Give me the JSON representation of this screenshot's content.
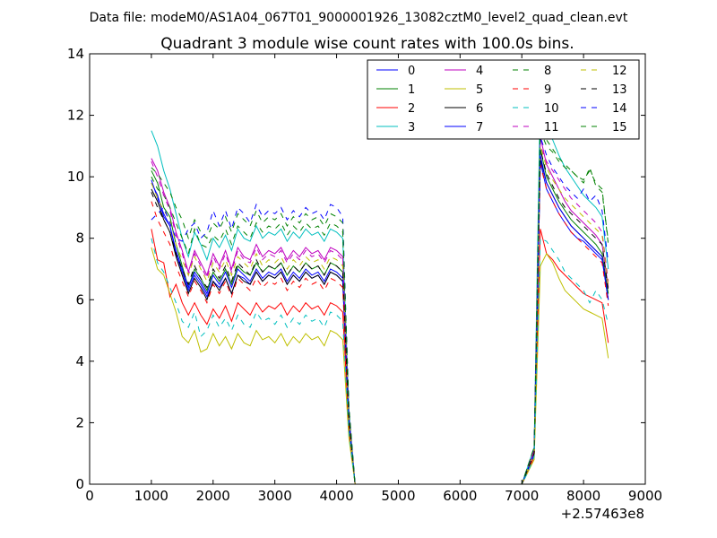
{
  "chart_data": {
    "type": "line",
    "suptitle": "Data file: modeM0/AS1A04_067T01_9000001926_13082cztM0_level2_quad_clean.evt",
    "title": "Quadrant 3 module wise count rates with 100.0s bins.",
    "xlabel": "",
    "ylabel": "",
    "x_offset_label": "+2.57463e8",
    "xlim": [
      0,
      9000
    ],
    "ylim": [
      0,
      14
    ],
    "xticks": [
      0,
      1000,
      2000,
      3000,
      4000,
      5000,
      6000,
      7000,
      8000,
      9000
    ],
    "yticks": [
      0,
      2,
      4,
      6,
      8,
      10,
      12,
      14
    ],
    "grid": false,
    "legend_position": "top-right",
    "x": [
      1000,
      1100,
      1200,
      1300,
      1400,
      1500,
      1600,
      1700,
      1800,
      1900,
      2000,
      2100,
      2200,
      2300,
      2400,
      2500,
      2600,
      2700,
      2800,
      2900,
      3000,
      3100,
      3200,
      3300,
      3400,
      3500,
      3600,
      3700,
      3800,
      3900,
      4000,
      4100,
      4200,
      4300,
      4400,
      5000,
      6000,
      7000,
      7100,
      7200,
      7300,
      7400,
      7500,
      7600,
      7700,
      7800,
      7900,
      8000,
      8100,
      8200,
      8300,
      8400
    ],
    "series": [
      {
        "name": "0",
        "style": "solid",
        "color": "#0000ff",
        "values": [
          9.8,
          9.4,
          8.7,
          8.4,
          7.5,
          6.9,
          6.3,
          6.8,
          6.5,
          6.1,
          6.6,
          6.4,
          6.7,
          6.2,
          6.8,
          6.7,
          6.5,
          6.9,
          6.6,
          6.8,
          6.7,
          6.9,
          6.5,
          6.8,
          6.6,
          6.9,
          6.7,
          6.8,
          6.5,
          6.9,
          6.8,
          6.6,
          2.0,
          0,
          0,
          0,
          0,
          0,
          0.5,
          1.0,
          10.5,
          9.6,
          9.2,
          8.8,
          8.5,
          8.2,
          8.0,
          7.9,
          7.7,
          7.5,
          7.3,
          6.0
        ]
      },
      {
        "name": "1",
        "style": "solid",
        "color": "#008000",
        "values": [
          10.2,
          9.8,
          9.0,
          8.7,
          7.8,
          7.1,
          6.4,
          7.0,
          6.7,
          6.3,
          6.9,
          6.6,
          7.0,
          6.5,
          7.1,
          6.9,
          6.8,
          7.2,
          6.9,
          7.1,
          7.0,
          7.2,
          6.8,
          7.1,
          6.9,
          7.2,
          7.0,
          7.1,
          6.8,
          7.2,
          7.1,
          6.9,
          2.1,
          0,
          0,
          0,
          0,
          0,
          0.5,
          1.0,
          10.9,
          10.0,
          9.6,
          9.2,
          8.9,
          8.6,
          8.4,
          8.2,
          8.0,
          7.8,
          7.5,
          6.2
        ]
      },
      {
        "name": "2",
        "style": "solid",
        "color": "#ff0000",
        "values": [
          8.3,
          7.3,
          7.2,
          6.1,
          6.5,
          5.9,
          5.5,
          5.9,
          5.5,
          5.2,
          5.7,
          5.4,
          5.8,
          5.3,
          5.9,
          5.7,
          5.5,
          5.9,
          5.6,
          5.8,
          5.7,
          5.9,
          5.5,
          5.8,
          5.6,
          5.9,
          5.7,
          5.8,
          5.5,
          5.9,
          5.8,
          5.6,
          1.8,
          0,
          0,
          0,
          0,
          0,
          0.4,
          0.9,
          8.3,
          7.5,
          7.3,
          7.0,
          6.8,
          6.6,
          6.4,
          6.2,
          6.1,
          6.0,
          5.9,
          4.6
        ]
      },
      {
        "name": "3",
        "style": "solid",
        "color": "#00bfbf",
        "values": [
          11.5,
          11.0,
          10.2,
          9.6,
          8.8,
          8.0,
          7.4,
          8.2,
          7.8,
          7.3,
          8.0,
          7.7,
          8.1,
          7.6,
          8.3,
          8.0,
          7.9,
          8.4,
          8.0,
          8.2,
          8.1,
          8.3,
          7.9,
          8.2,
          8.0,
          8.3,
          8.1,
          8.2,
          7.9,
          8.3,
          8.2,
          8.0,
          2.4,
          0,
          0,
          0,
          0,
          0,
          0.6,
          1.2,
          12.9,
          11.7,
          11.2,
          10.7,
          10.3,
          10.0,
          9.7,
          9.4,
          9.2,
          9.0,
          8.7,
          7.0
        ]
      },
      {
        "name": "4",
        "style": "solid",
        "color": "#bf00bf",
        "values": [
          10.6,
          10.2,
          9.5,
          9.0,
          8.2,
          7.6,
          6.9,
          7.6,
          7.2,
          6.8,
          7.5,
          7.1,
          7.6,
          7.0,
          7.7,
          7.4,
          7.3,
          7.8,
          7.4,
          7.6,
          7.5,
          7.7,
          7.3,
          7.6,
          7.4,
          7.7,
          7.5,
          7.6,
          7.3,
          7.7,
          7.6,
          7.4,
          2.2,
          0,
          0,
          0,
          0,
          0,
          0.5,
          1.1,
          11.3,
          10.4,
          10.0,
          9.6,
          9.2,
          8.9,
          8.7,
          8.5,
          8.3,
          8.1,
          7.8,
          6.4
        ]
      },
      {
        "name": "5",
        "style": "solid",
        "color": "#bfbf00",
        "values": [
          7.7,
          7.0,
          6.8,
          6.2,
          5.6,
          4.8,
          4.6,
          5.0,
          4.3,
          4.4,
          4.9,
          4.5,
          4.8,
          4.4,
          4.9,
          4.6,
          4.5,
          5.0,
          4.7,
          4.8,
          4.6,
          4.9,
          4.5,
          4.8,
          4.6,
          4.9,
          4.7,
          4.8,
          4.5,
          5.0,
          4.9,
          4.7,
          1.5,
          0,
          0,
          0,
          0,
          0,
          0.4,
          0.8,
          7.1,
          7.5,
          7.2,
          6.7,
          6.3,
          6.1,
          5.9,
          5.7,
          5.6,
          5.5,
          5.4,
          4.1
        ]
      },
      {
        "name": "6",
        "style": "solid",
        "color": "#000000",
        "values": [
          9.6,
          9.2,
          8.6,
          8.2,
          7.4,
          6.8,
          6.2,
          6.7,
          6.4,
          6.0,
          6.6,
          6.3,
          6.7,
          6.2,
          6.8,
          6.6,
          6.5,
          6.9,
          6.6,
          6.8,
          6.7,
          6.9,
          6.5,
          6.8,
          6.6,
          6.9,
          6.7,
          6.8,
          6.5,
          6.9,
          6.8,
          6.6,
          2.0,
          0,
          0,
          0,
          0,
          0,
          0.5,
          1.0,
          10.6,
          9.8,
          9.4,
          9.0,
          8.7,
          8.4,
          8.2,
          8.0,
          7.8,
          7.6,
          7.4,
          6.0
        ]
      },
      {
        "name": "7",
        "style": "solid",
        "color": "#0000ff",
        "values": [
          9.9,
          9.3,
          8.8,
          8.4,
          7.6,
          7.0,
          6.4,
          6.9,
          6.6,
          6.2,
          6.8,
          6.5,
          6.9,
          6.4,
          7.0,
          6.8,
          6.6,
          7.0,
          6.7,
          6.9,
          6.8,
          7.0,
          6.6,
          6.9,
          6.7,
          7.0,
          6.8,
          6.9,
          6.6,
          7.0,
          6.9,
          6.7,
          2.0,
          0,
          0,
          0,
          0,
          0,
          0.5,
          1.0,
          10.7,
          9.8,
          9.4,
          9.0,
          8.7,
          8.4,
          8.2,
          8.0,
          7.8,
          7.6,
          7.4,
          6.0
        ]
      },
      {
        "name": "8",
        "style": "dashed",
        "color": "#008000",
        "values": [
          10.0,
          9.6,
          9.4,
          9.0,
          8.5,
          8.0,
          7.5,
          8.3,
          7.8,
          7.7,
          8.1,
          7.9,
          8.3,
          7.8,
          8.4,
          8.2,
          8.0,
          8.5,
          8.2,
          8.4,
          8.3,
          8.5,
          8.1,
          8.4,
          8.2,
          8.5,
          8.3,
          8.4,
          8.1,
          8.5,
          8.4,
          8.2,
          2.4,
          0,
          0,
          0,
          0,
          0,
          0.6,
          1.2,
          11.5,
          11.0,
          10.8,
          10.5,
          10.3,
          10.2,
          10.0,
          9.9,
          10.2,
          9.8,
          9.6,
          7.8
        ]
      },
      {
        "name": "9",
        "style": "dashed",
        "color": "#ff0000",
        "values": [
          9.2,
          8.6,
          8.2,
          7.8,
          7.1,
          6.6,
          6.1,
          6.6,
          6.3,
          5.9,
          6.5,
          6.2,
          6.6,
          6.1,
          6.7,
          6.5,
          6.3,
          6.7,
          6.4,
          6.6,
          6.5,
          6.7,
          6.3,
          6.6,
          6.4,
          6.7,
          6.5,
          6.6,
          6.3,
          6.7,
          6.6,
          6.4,
          1.9,
          0,
          0,
          0,
          0,
          0,
          0.5,
          1.0,
          10.4,
          9.6,
          9.2,
          8.8,
          8.5,
          8.2,
          8.0,
          7.8,
          7.6,
          7.4,
          7.2,
          5.8
        ]
      },
      {
        "name": "10",
        "style": "dashed",
        "color": "#00bfbf",
        "values": [
          8.0,
          7.2,
          6.9,
          6.4,
          5.9,
          5.3,
          5.1,
          5.6,
          4.8,
          5.0,
          5.5,
          5.1,
          5.4,
          5.0,
          5.5,
          5.2,
          5.1,
          5.6,
          5.3,
          5.4,
          5.2,
          5.5,
          5.1,
          5.4,
          5.2,
          5.5,
          5.3,
          5.4,
          5.1,
          5.6,
          5.5,
          5.3,
          1.7,
          0,
          0,
          0,
          0,
          0,
          0.4,
          0.9,
          8.0,
          7.9,
          7.6,
          7.3,
          6.9,
          6.7,
          6.5,
          6.3,
          5.9,
          6.3,
          6.0,
          5.2
        ]
      },
      {
        "name": "11",
        "style": "dashed",
        "color": "#bf00bf",
        "values": [
          10.5,
          10.0,
          9.4,
          8.9,
          8.1,
          7.5,
          6.8,
          7.5,
          7.1,
          6.7,
          7.4,
          7.0,
          7.5,
          6.9,
          7.6,
          7.3,
          7.2,
          7.7,
          7.3,
          7.5,
          7.4,
          7.6,
          7.2,
          7.5,
          7.3,
          7.6,
          7.4,
          7.5,
          7.2,
          7.6,
          7.5,
          7.3,
          2.2,
          0,
          0,
          0,
          0,
          0,
          0.5,
          1.1,
          11.0,
          10.5,
          10.2,
          9.9,
          9.6,
          9.3,
          9.1,
          8.9,
          8.7,
          8.5,
          8.2,
          6.6
        ]
      },
      {
        "name": "12",
        "style": "dashed",
        "color": "#bfbf00",
        "values": [
          9.8,
          9.3,
          8.9,
          8.6,
          7.8,
          7.3,
          6.8,
          7.4,
          7.0,
          6.6,
          7.2,
          6.9,
          7.3,
          6.8,
          7.4,
          7.2,
          7.0,
          7.5,
          7.1,
          7.3,
          7.2,
          7.4,
          7.0,
          7.3,
          7.1,
          7.4,
          7.2,
          7.3,
          7.0,
          7.4,
          7.3,
          7.1,
          2.1,
          0,
          0,
          0,
          0,
          0,
          0.5,
          1.0,
          11.0,
          10.3,
          9.9,
          9.6,
          9.3,
          9.1,
          8.9,
          8.7,
          8.5,
          8.3,
          8.1,
          6.5
        ]
      },
      {
        "name": "13",
        "style": "dashed",
        "color": "#000000",
        "values": [
          9.5,
          9.0,
          8.6,
          8.2,
          7.5,
          7.0,
          6.5,
          7.1,
          6.7,
          6.4,
          7.0,
          6.7,
          7.1,
          6.6,
          7.2,
          7.0,
          6.8,
          7.3,
          6.9,
          7.1,
          7.0,
          7.2,
          6.8,
          7.1,
          6.9,
          7.2,
          7.0,
          7.1,
          6.8,
          7.2,
          7.1,
          6.9,
          2.1,
          0,
          0,
          0,
          0,
          0,
          0.5,
          1.0,
          10.9,
          10.1,
          9.7,
          9.3,
          9.0,
          8.8,
          8.6,
          8.4,
          8.2,
          8.0,
          7.8,
          6.3
        ]
      },
      {
        "name": "14",
        "style": "dashed",
        "color": "#0000ff",
        "values": [
          8.6,
          8.8,
          9.0,
          8.5,
          8.0,
          7.9,
          8.3,
          8.5,
          8.0,
          8.2,
          8.9,
          8.4,
          8.9,
          8.3,
          9.0,
          8.8,
          8.5,
          9.1,
          8.7,
          8.9,
          8.8,
          9.0,
          8.6,
          8.9,
          8.7,
          9.0,
          8.8,
          8.9,
          8.6,
          9.1,
          9.0,
          8.7,
          2.5,
          0,
          0,
          0,
          0,
          0,
          0.6,
          1.2,
          11.3,
          10.7,
          10.3,
          10.0,
          9.7,
          9.5,
          9.3,
          9.6,
          9.2,
          9.4,
          8.9,
          7.2
        ]
      },
      {
        "name": "15",
        "style": "dashed",
        "color": "#008000",
        "values": [
          10.3,
          10.1,
          9.8,
          9.5,
          9.0,
          8.6,
          8.0,
          8.6,
          8.2,
          8.0,
          8.5,
          8.3,
          8.7,
          8.2,
          8.8,
          8.6,
          8.4,
          8.9,
          8.5,
          8.7,
          8.6,
          8.8,
          8.4,
          8.7,
          8.5,
          8.8,
          8.6,
          8.7,
          8.4,
          8.8,
          8.7,
          8.5,
          2.5,
          0,
          0,
          0,
          0,
          0,
          0.6,
          1.2,
          11.8,
          11.2,
          10.9,
          10.6,
          10.4,
          10.2,
          10.0,
          9.8,
          10.3,
          9.7,
          9.5,
          7.9
        ]
      }
    ]
  }
}
